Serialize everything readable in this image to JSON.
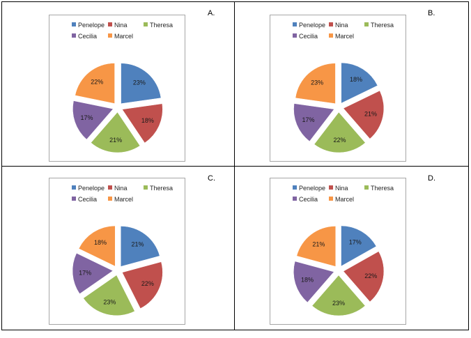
{
  "chart_data": [
    {
      "type": "pie",
      "panel_label": "A.",
      "legend": [
        "Penelope",
        "Nina",
        "Theresa",
        "Cecilia",
        "Marcel"
      ],
      "slices": [
        {
          "name": "Penelope",
          "value": 23,
          "label": "23%",
          "color": "#4f81bd"
        },
        {
          "name": "Nina",
          "value": 18,
          "label": "18%",
          "color": "#c0504d"
        },
        {
          "name": "Theresa",
          "value": 21,
          "label": "21%",
          "color": "#9bbb59"
        },
        {
          "name": "Cecilia",
          "value": 17,
          "label": "17%",
          "color": "#8064a2"
        },
        {
          "name": "Marcel",
          "value": 22,
          "label": "22%",
          "color": "#f79646"
        }
      ],
      "exploded": true,
      "legend_position": "top"
    },
    {
      "type": "pie",
      "panel_label": "B.",
      "legend": [
        "Penelope",
        "Nina",
        "Theresa",
        "Cecilia",
        "Marcel"
      ],
      "slices": [
        {
          "name": "Penelope",
          "value": 18,
          "label": "18%",
          "color": "#4f81bd"
        },
        {
          "name": "Nina",
          "value": 21,
          "label": "21%",
          "color": "#c0504d"
        },
        {
          "name": "Theresa",
          "value": 22,
          "label": "22%",
          "color": "#9bbb59"
        },
        {
          "name": "Cecilia",
          "value": 17,
          "label": "17%",
          "color": "#8064a2"
        },
        {
          "name": "Marcel",
          "value": 23,
          "label": "23%",
          "color": "#f79646"
        }
      ],
      "exploded": true,
      "legend_position": "top"
    },
    {
      "type": "pie",
      "panel_label": "C.",
      "legend": [
        "Penelope",
        "Nina",
        "Theresa",
        "Cecilia",
        "Marcel"
      ],
      "slices": [
        {
          "name": "Penelope",
          "value": 21,
          "label": "21%",
          "color": "#4f81bd"
        },
        {
          "name": "Nina",
          "value": 22,
          "label": "22%",
          "color": "#c0504d"
        },
        {
          "name": "Theresa",
          "value": 23,
          "label": "23%",
          "color": "#9bbb59"
        },
        {
          "name": "Cecilia",
          "value": 17,
          "label": "17%",
          "color": "#8064a2"
        },
        {
          "name": "Marcel",
          "value": 18,
          "label": "18%",
          "color": "#f79646"
        }
      ],
      "exploded": true,
      "legend_position": "top"
    },
    {
      "type": "pie",
      "panel_label": "D.",
      "legend": [
        "Penelope",
        "Nina",
        "Theresa",
        "Cecilia",
        "Marcel"
      ],
      "slices": [
        {
          "name": "Penelope",
          "value": 17,
          "label": "17%",
          "color": "#4f81bd"
        },
        {
          "name": "Nina",
          "value": 22,
          "label": "22%",
          "color": "#c0504d"
        },
        {
          "name": "Theresa",
          "value": 23,
          "label": "23%",
          "color": "#9bbb59"
        },
        {
          "name": "Cecilia",
          "value": 18,
          "label": "18%",
          "color": "#8064a2"
        },
        {
          "name": "Marcel",
          "value": 21,
          "label": "21%",
          "color": "#f79646"
        }
      ],
      "exploded": true,
      "legend_position": "top"
    }
  ]
}
